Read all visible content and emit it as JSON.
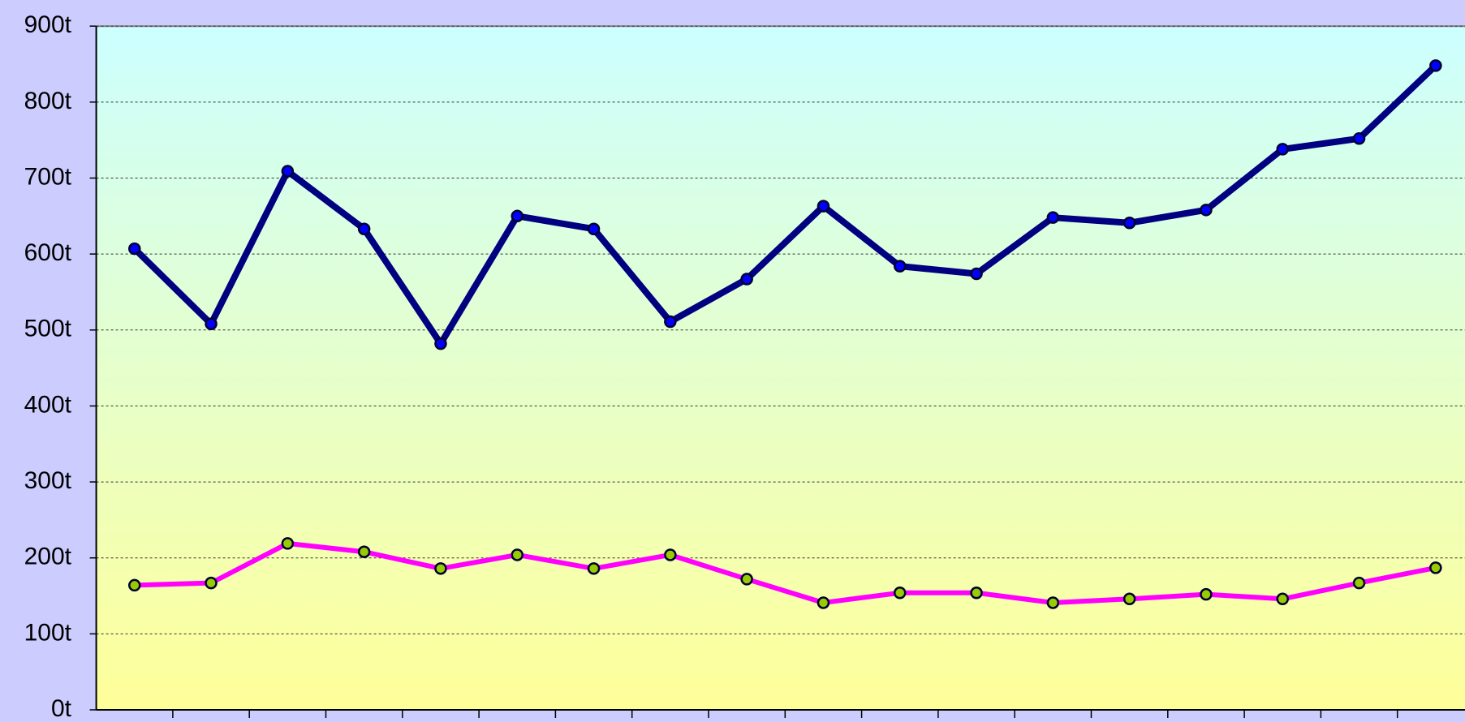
{
  "chart_data": {
    "type": "line",
    "categories": [
      null,
      null,
      null,
      null,
      null,
      null,
      null,
      null,
      null,
      null,
      null,
      null,
      null,
      null,
      null,
      null,
      null,
      null
    ],
    "series": [
      {
        "color": "#000080",
        "marker_color": "#0000ff",
        "values": [
          607,
          508,
          709,
          633,
          482,
          650,
          633,
          511,
          567,
          663,
          584,
          574,
          648,
          641,
          658,
          738,
          752,
          848
        ]
      },
      {
        "color": "#ff00ff",
        "marker_color": "#99cc00",
        "values": [
          164,
          167,
          219,
          208,
          186,
          204,
          186,
          204,
          172,
          141,
          154,
          154,
          141,
          146,
          152,
          146,
          167,
          187
        ]
      }
    ],
    "ylim": [
      0,
      900
    ],
    "yticks": [
      {
        "value": 0,
        "label": "0t"
      },
      {
        "value": 100,
        "label": "100t"
      },
      {
        "value": 200,
        "label": "200t"
      },
      {
        "value": 300,
        "label": "300t"
      },
      {
        "value": 400,
        "label": "400t"
      },
      {
        "value": 500,
        "label": "500t"
      },
      {
        "value": 600,
        "label": "600t"
      },
      {
        "value": 700,
        "label": "700t"
      },
      {
        "value": 800,
        "label": "800t"
      },
      {
        "value": 900,
        "label": "900t"
      }
    ],
    "grid": true
  }
}
